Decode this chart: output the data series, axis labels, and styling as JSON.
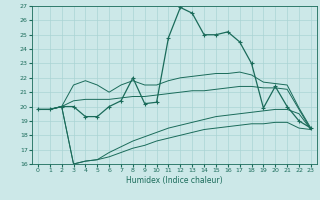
{
  "xlabel": "Humidex (Indice chaleur)",
  "xlim": [
    -0.5,
    23.5
  ],
  "ylim": [
    16,
    27
  ],
  "yticks": [
    16,
    17,
    18,
    19,
    20,
    21,
    22,
    23,
    24,
    25,
    26,
    27
  ],
  "xticks": [
    0,
    1,
    2,
    3,
    4,
    5,
    6,
    7,
    8,
    9,
    10,
    11,
    12,
    13,
    14,
    15,
    16,
    17,
    18,
    19,
    20,
    21,
    22,
    23
  ],
  "bg_color": "#cce8e8",
  "grid_color": "#aad4d4",
  "line_color": "#1a6b5a",
  "main_line": [
    19.8,
    19.8,
    20.0,
    20.0,
    19.3,
    19.3,
    20.0,
    20.4,
    22.0,
    20.2,
    20.3,
    24.8,
    26.9,
    26.5,
    25.0,
    25.0,
    25.2,
    24.5,
    23.0,
    19.9,
    21.4,
    20.0,
    19.0,
    18.5
  ],
  "upper_line": [
    19.8,
    19.8,
    20.0,
    21.5,
    21.8,
    21.5,
    21.0,
    21.5,
    21.8,
    21.5,
    21.5,
    21.8,
    22.0,
    22.1,
    22.2,
    22.3,
    22.3,
    22.4,
    22.2,
    21.7,
    21.6,
    21.5,
    19.9,
    18.5
  ],
  "mid_line": [
    19.8,
    19.8,
    20.0,
    20.4,
    20.5,
    20.5,
    20.5,
    20.6,
    20.7,
    20.7,
    20.8,
    20.9,
    21.0,
    21.1,
    21.1,
    21.2,
    21.3,
    21.4,
    21.4,
    21.3,
    21.3,
    21.2,
    19.8,
    18.4
  ],
  "lower_line1": [
    19.8,
    19.8,
    20.0,
    16.0,
    16.2,
    16.3,
    16.5,
    16.8,
    17.1,
    17.3,
    17.6,
    17.8,
    18.0,
    18.2,
    18.4,
    18.5,
    18.6,
    18.7,
    18.8,
    18.8,
    18.9,
    18.9,
    18.5,
    18.4
  ],
  "lower_line2": [
    19.8,
    19.8,
    20.0,
    16.0,
    16.2,
    16.3,
    16.8,
    17.2,
    17.6,
    17.9,
    18.2,
    18.5,
    18.7,
    18.9,
    19.1,
    19.3,
    19.4,
    19.5,
    19.6,
    19.7,
    19.8,
    19.8,
    19.5,
    18.4
  ]
}
